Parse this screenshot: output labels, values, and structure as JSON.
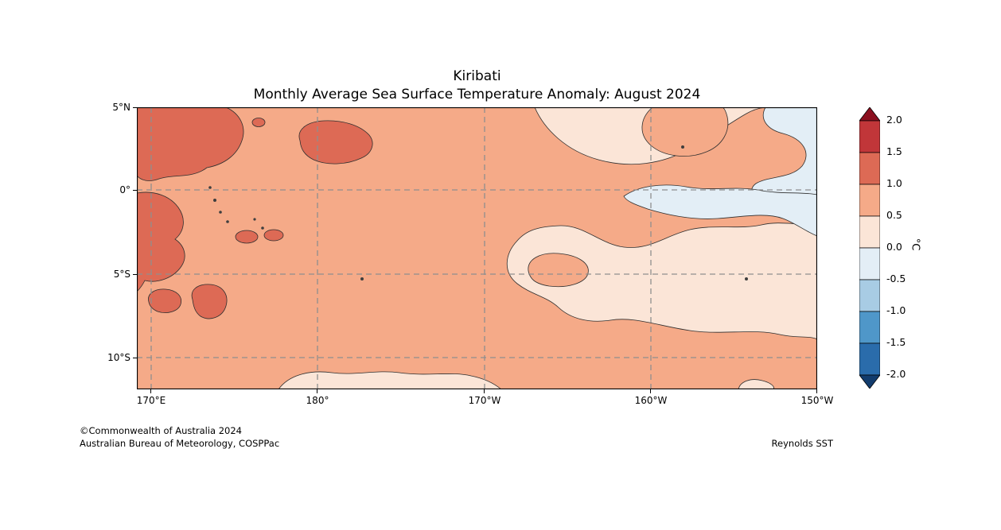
{
  "title": {
    "line1": "Kiribati",
    "line2": "Monthly Average Sea Surface Temperature Anomaly: August 2024"
  },
  "axes": {
    "x_ticks": [
      "170°E",
      "180°",
      "170°W",
      "160°W",
      "150°W"
    ],
    "y_ticks": [
      "5°N",
      "0°",
      "5°S",
      "10°S"
    ]
  },
  "colorbar": {
    "unit": "°C",
    "tick_labels": [
      "2.0",
      "1.5",
      "1.0",
      "0.5",
      "0.0",
      "-0.5",
      "-1.0",
      "-1.5",
      "-2.0"
    ],
    "over_color": "#8b0f1f",
    "under_color": "#123c6d",
    "colors_top_to_bottom": [
      "#c13639",
      "#dd6a55",
      "#f5aa88",
      "#fbe5d7",
      "#e3eef6",
      "#a8cce4",
      "#4f97c9",
      "#2a6cab"
    ]
  },
  "footer": {
    "copyright": "©Commonwealth of Australia 2024",
    "agency": "Australian Bureau of Meteorology, COSPPac",
    "source": "Reynolds SST"
  },
  "chart_data": {
    "type": "heatmap",
    "variant": "filled_contour_map",
    "region": "Kiribati",
    "period": "August 2024",
    "title": "Kiribati",
    "subtitle": "Monthly Average Sea Surface Temperature Anomaly: August 2024",
    "xlabel": "",
    "ylabel": "",
    "x_ticks": [
      "170°E",
      "180°",
      "170°W",
      "160°W",
      "150°W"
    ],
    "y_ticks": [
      "5°N",
      "0°",
      "5°S",
      "10°S"
    ],
    "x_range": [
      "169°E",
      "150°W"
    ],
    "y_range": [
      "12°S",
      "5°N"
    ],
    "grid": "dashed gray gridlines every 10° longitude and 5° latitude",
    "legend_position": "right",
    "colorbar_label": "°C",
    "contour_levels_degC": [
      -2.0,
      -1.5,
      -1.0,
      -0.5,
      0.0,
      0.5,
      1.0,
      1.5,
      2.0
    ],
    "palette": {
      "over_2_0": "#8b0f1f",
      "p_1_5_2_0": "#c13639",
      "p_1_0_1_5": "#dd6a55",
      "p_0_5_1_0": "#f5aa88",
      "p_0_0_0_5": "#fbe5d7",
      "n_0_5_0_0": "#e3eef6",
      "n_1_0_0_5": "#a8cce4",
      "n_1_5_1_0": "#4f97c9",
      "n_2_0_1_5": "#2a6cab",
      "under_2_0": "#123c6d",
      "land_speck": "#3e3e3e"
    },
    "features": [
      {
        "area": "far west near 170°E, 5°N to 2°N",
        "anomaly_degC": "+1.0 to +1.5"
      },
      {
        "area": "west near 178°E–180°, 2°N–3°N",
        "anomaly_degC": "+1.0 to +1.5"
      },
      {
        "area": "far west near 170°E–173°E, 1°S to 8°S (several blobs)",
        "anomaly_degC": "+1.0 to +1.5"
      },
      {
        "area": "most of western and central region",
        "anomaly_degC": "+0.5 to +1.0"
      },
      {
        "area": "broad central-eastern band near 172°W–150°W, 1°S–7°S",
        "anomaly_degC": "0.0 to +0.5"
      },
      {
        "area": "north-eastern area near 155°W–150°W north of 2°S",
        "anomaly_degC": "0.0 to +0.5 with pockets of -0.5 to 0.0"
      },
      {
        "area": "along the equator near 158°W–150°W",
        "anomaly_degC": "-0.5 to 0.0"
      },
      {
        "area": "southern strip near 178°E–171°W, 11°S–12°S",
        "anomaly_degC": "0.0 to +0.5"
      }
    ]
  }
}
